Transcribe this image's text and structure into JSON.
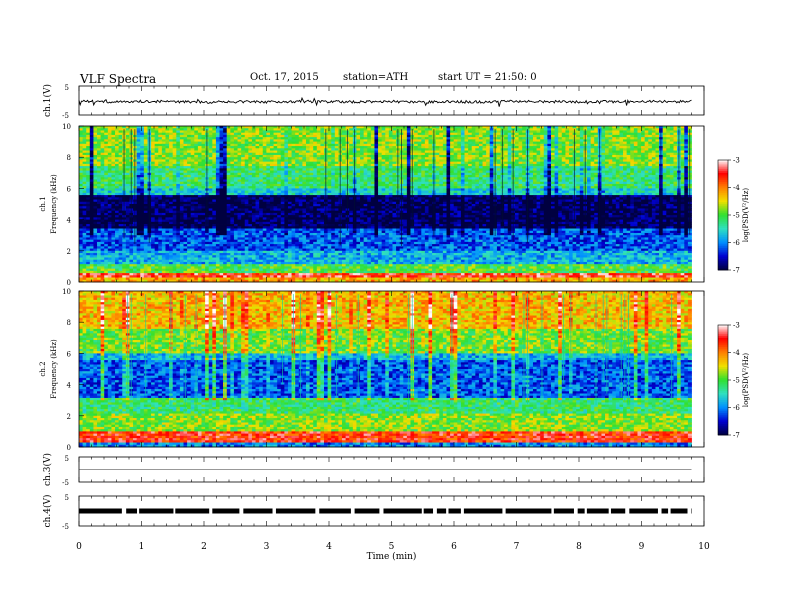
{
  "header": {
    "title": "VLF Spectra",
    "date": "Oct. 17, 2015",
    "station": "station=ATH",
    "start": "start UT =  21:50: 0"
  },
  "chart_data": [
    {
      "type": "line",
      "ylabel": "ch.1(V)",
      "ylim": [
        -5,
        5
      ],
      "yticks": [
        "5",
        "-5"
      ],
      "x": [
        0,
        0.5,
        1,
        1.5,
        2,
        2.5,
        3,
        3.5,
        4,
        4.5,
        5,
        5.5,
        6,
        6.5,
        7,
        7.5,
        8,
        8.5,
        9,
        9.5,
        9.8
      ],
      "values": [
        -0.2,
        -0.5,
        -0.3,
        -0.4,
        -0.6,
        -0.4,
        -0.5,
        -0.3,
        -0.4,
        -0.5,
        -0.3,
        -0.6,
        -0.4,
        -0.5,
        -0.3,
        -0.4,
        -0.5,
        -0.4,
        -0.3,
        -0.4,
        -0.3
      ]
    },
    {
      "type": "heatmap",
      "ylabel": "ch.1\nFrequency (kHz)",
      "ylim": [
        0,
        10
      ],
      "yticks": [
        "0",
        "2",
        "4",
        "6",
        "8",
        "10"
      ],
      "xlim": [
        0,
        9.8
      ],
      "colorbar": {
        "label": "log(PSD(V²/Hz)",
        "ticks": [
          "-3",
          "-4",
          "-5",
          "-6",
          "-7"
        ]
      },
      "bands": [
        {
          "f": [
            0,
            0.3
          ],
          "level": -4.2
        },
        {
          "f": [
            0.3,
            0.6
          ],
          "level": -3.5
        },
        {
          "f": [
            0.6,
            1.2
          ],
          "level": -5.0
        },
        {
          "f": [
            1.2,
            2.0
          ],
          "level": -5.8
        },
        {
          "f": [
            2.0,
            3.4
          ],
          "level": -6.2
        },
        {
          "f": [
            3.4,
            5.6
          ],
          "level": -6.9
        },
        {
          "f": [
            5.6,
            6.0
          ],
          "level": -5.6
        },
        {
          "f": [
            6.0,
            7.5
          ],
          "level": -5.2
        },
        {
          "f": [
            7.5,
            10.0
          ],
          "level": -4.8
        }
      ]
    },
    {
      "type": "heatmap",
      "ylabel": "ch.2\nFrequency (kHz)",
      "ylim": [
        0,
        10
      ],
      "yticks": [
        "0",
        "2",
        "4",
        "6",
        "8",
        "10"
      ],
      "xlim": [
        0,
        9.8
      ],
      "colorbar": {
        "label": "log(PSD(V²/Hz)",
        "ticks": [
          "-3",
          "-4",
          "-5",
          "-6",
          "-7"
        ]
      },
      "bands": [
        {
          "f": [
            0,
            0.3
          ],
          "level": -6.0
        },
        {
          "f": [
            0.3,
            1.0
          ],
          "level": -3.6
        },
        {
          "f": [
            1.0,
            2.2
          ],
          "level": -4.8
        },
        {
          "f": [
            2.2,
            3.2
          ],
          "level": -5.2
        },
        {
          "f": [
            3.2,
            5.6
          ],
          "level": -6.2
        },
        {
          "f": [
            5.6,
            6.0
          ],
          "level": -5.8
        },
        {
          "f": [
            6.0,
            7.6
          ],
          "level": -4.9
        },
        {
          "f": [
            7.6,
            10.0
          ],
          "level": -4.3
        }
      ]
    },
    {
      "type": "line",
      "ylabel": "ch.3(V)",
      "ylim": [
        -5,
        5
      ],
      "yticks": [
        "5",
        "-5"
      ],
      "x": [
        0,
        9.8
      ],
      "values": [
        0,
        0
      ]
    },
    {
      "type": "line",
      "ylabel": "ch.4(V)",
      "ylim": [
        -5,
        5
      ],
      "yticks": [
        "5",
        "-5"
      ],
      "x": [
        0,
        9.8
      ],
      "values": [
        0,
        0
      ]
    }
  ],
  "xaxis": {
    "label": "Time (min)",
    "xlim": [
      0,
      10
    ],
    "ticks": [
      "0",
      "1",
      "2",
      "3",
      "4",
      "5",
      "6",
      "7",
      "8",
      "9",
      "10"
    ]
  },
  "colors": {
    "palette": [
      "#000040",
      "#0000d0",
      "#0090ff",
      "#30e0c0",
      "#30e030",
      "#f0e000",
      "#ff8000",
      "#ff0000",
      "#ffffff"
    ]
  }
}
